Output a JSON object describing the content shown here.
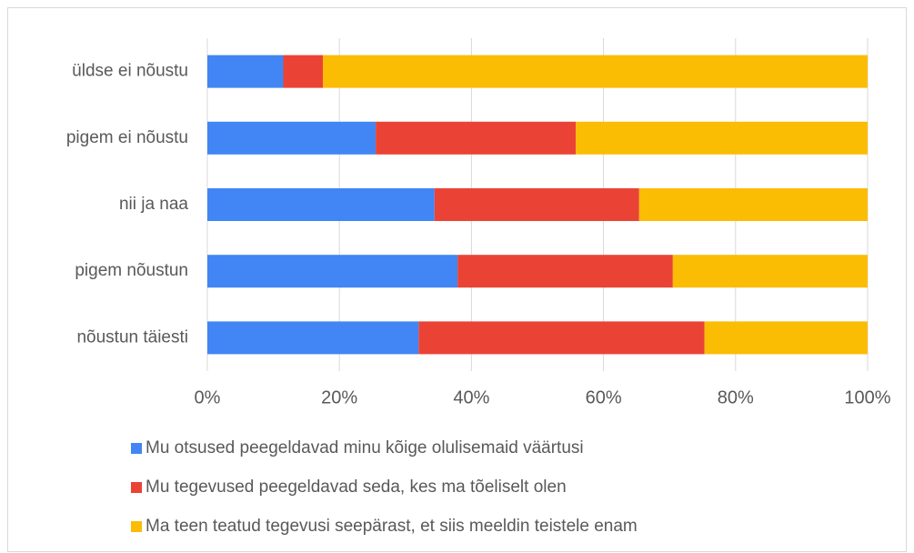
{
  "chart_data": {
    "type": "bar",
    "orientation": "horizontal",
    "stacked": true,
    "categories": [
      "üldse ei nõustu",
      "pigem ei nõustu",
      "nii ja naa",
      "pigem nõustun",
      "nõustun täiesti"
    ],
    "series": [
      {
        "name": "Mu otsused peegeldavad minu kõige olulisemaid väärtusi",
        "color": "#4285f4",
        "values": [
          11.5,
          25.5,
          34.4,
          37.9,
          32
        ]
      },
      {
        "name": "Mu tegevused peegeldavad seda, kes ma tõeliselt olen",
        "color": "#ea4335",
        "values": [
          6,
          30.3,
          31,
          32.6,
          43.3
        ]
      },
      {
        "name": "Ma teen teatud tegevusi seepärast, et siis meeldin teistele enam",
        "color": "#fbbc04",
        "values": [
          82.5,
          44.2,
          34.6,
          29.5,
          24.7
        ]
      }
    ],
    "xlim": [
      0,
      100
    ],
    "xticks": [
      {
        "value": 0,
        "label": "0%"
      },
      {
        "value": 20,
        "label": "20%"
      },
      {
        "value": 40,
        "label": "40%"
      },
      {
        "value": 60,
        "label": "60%"
      },
      {
        "value": 80,
        "label": "80%"
      },
      {
        "value": 100,
        "label": "100%"
      }
    ],
    "grid": true,
    "legend": "bottom"
  }
}
